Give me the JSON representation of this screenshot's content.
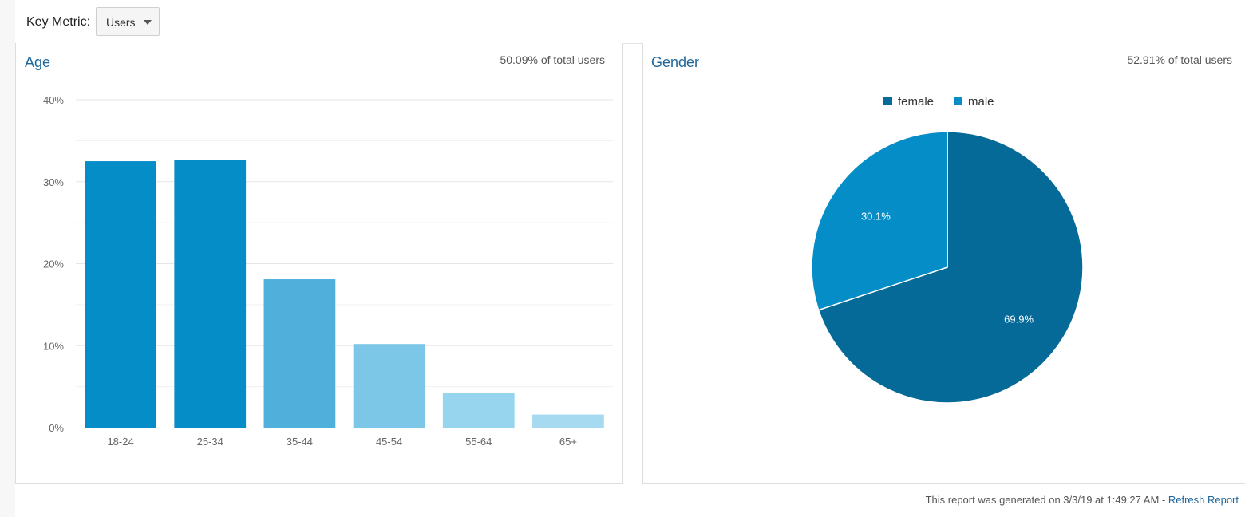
{
  "key_metric": {
    "label": "Key Metric:",
    "selected": "Users"
  },
  "age_panel": {
    "title": "Age",
    "subtitle": "50.09% of total users"
  },
  "gender_panel": {
    "title": "Gender",
    "subtitle": "52.91% of total users"
  },
  "footer": {
    "text": "This report was generated on 3/3/19 at 1:49:27 AM - ",
    "link": "Refresh Report"
  },
  "chart_data": [
    {
      "type": "bar",
      "title": "Age",
      "categories": [
        "18-24",
        "25-34",
        "35-44",
        "45-54",
        "55-64",
        "65+"
      ],
      "values": [
        32.5,
        32.7,
        18.1,
        10.2,
        4.2,
        1.6
      ],
      "ylim": [
        0,
        40
      ],
      "yticks": [
        0,
        10,
        20,
        30,
        40
      ],
      "ytick_labels": [
        "0%",
        "10%",
        "20%",
        "30%",
        "40%"
      ],
      "grid": true,
      "colors": [
        "#058dc7",
        "#058dc7",
        "#50b0db",
        "#7cc6e7",
        "#97d4ee",
        "#a6daf1"
      ]
    },
    {
      "type": "pie",
      "title": "Gender",
      "labels": [
        "female",
        "male"
      ],
      "values": [
        69.9,
        30.1
      ],
      "value_labels": [
        "69.9%",
        "30.1%"
      ],
      "colors": [
        "#056a98",
        "#058dc7"
      ],
      "legend": "top"
    }
  ]
}
